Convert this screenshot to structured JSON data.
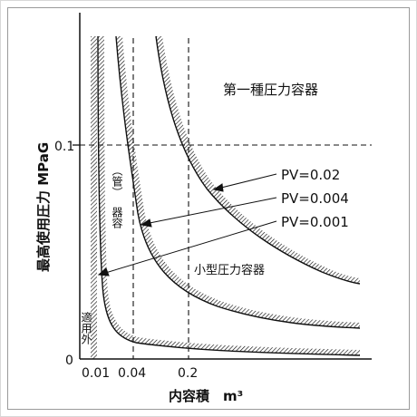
{
  "diagram": {
    "title": "第一種圧力容器",
    "ylabel": "最高使用圧力 MPaG",
    "xlabel": "内容積　m³",
    "y_ticks": [
      "0.1",
      "0"
    ],
    "x_ticks": [
      "0.01",
      "0.04",
      "0.2"
    ],
    "curve_labels": [
      "PV=0.02",
      "PV=0.004",
      "PV=0.001"
    ],
    "region_small": "小型圧力容器",
    "region_vessel": "器容",
    "region_vessel_paren": "（管）",
    "region_exempt": "適用外"
  },
  "colors": {
    "line": "#111111",
    "frame_outer": "#d8d8d8",
    "frame_inner": "#9a9a9a"
  }
}
